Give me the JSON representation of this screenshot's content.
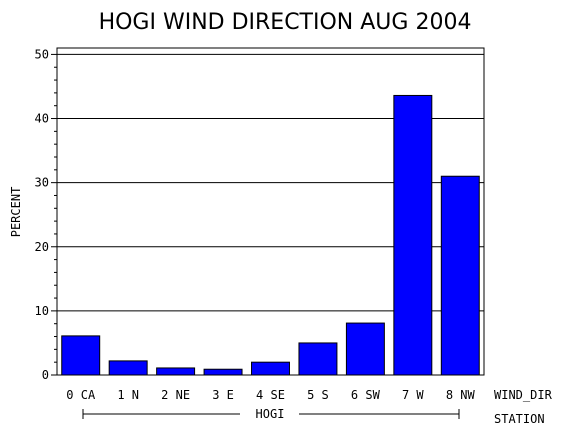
{
  "chart_data": {
    "type": "bar",
    "title": "HOGI WIND DIRECTION AUG 2004",
    "ylabel": "PERCENT",
    "xlabel": "WIND_DIR",
    "group_label": "STATION",
    "group_value": "HOGI",
    "categories": [
      "0 CA",
      "1 N",
      "2 NE",
      "3 E",
      "4 SE",
      "5 S",
      "6 SW",
      "7 W",
      "8 NW"
    ],
    "values": [
      6.1,
      2.2,
      1.1,
      0.9,
      2.0,
      5.0,
      8.1,
      43.6,
      31.0
    ],
    "ylim": [
      0,
      51
    ],
    "yticks": [
      0,
      10,
      20,
      30,
      40,
      50
    ],
    "grid": true,
    "bar_color": "#0000ff"
  }
}
